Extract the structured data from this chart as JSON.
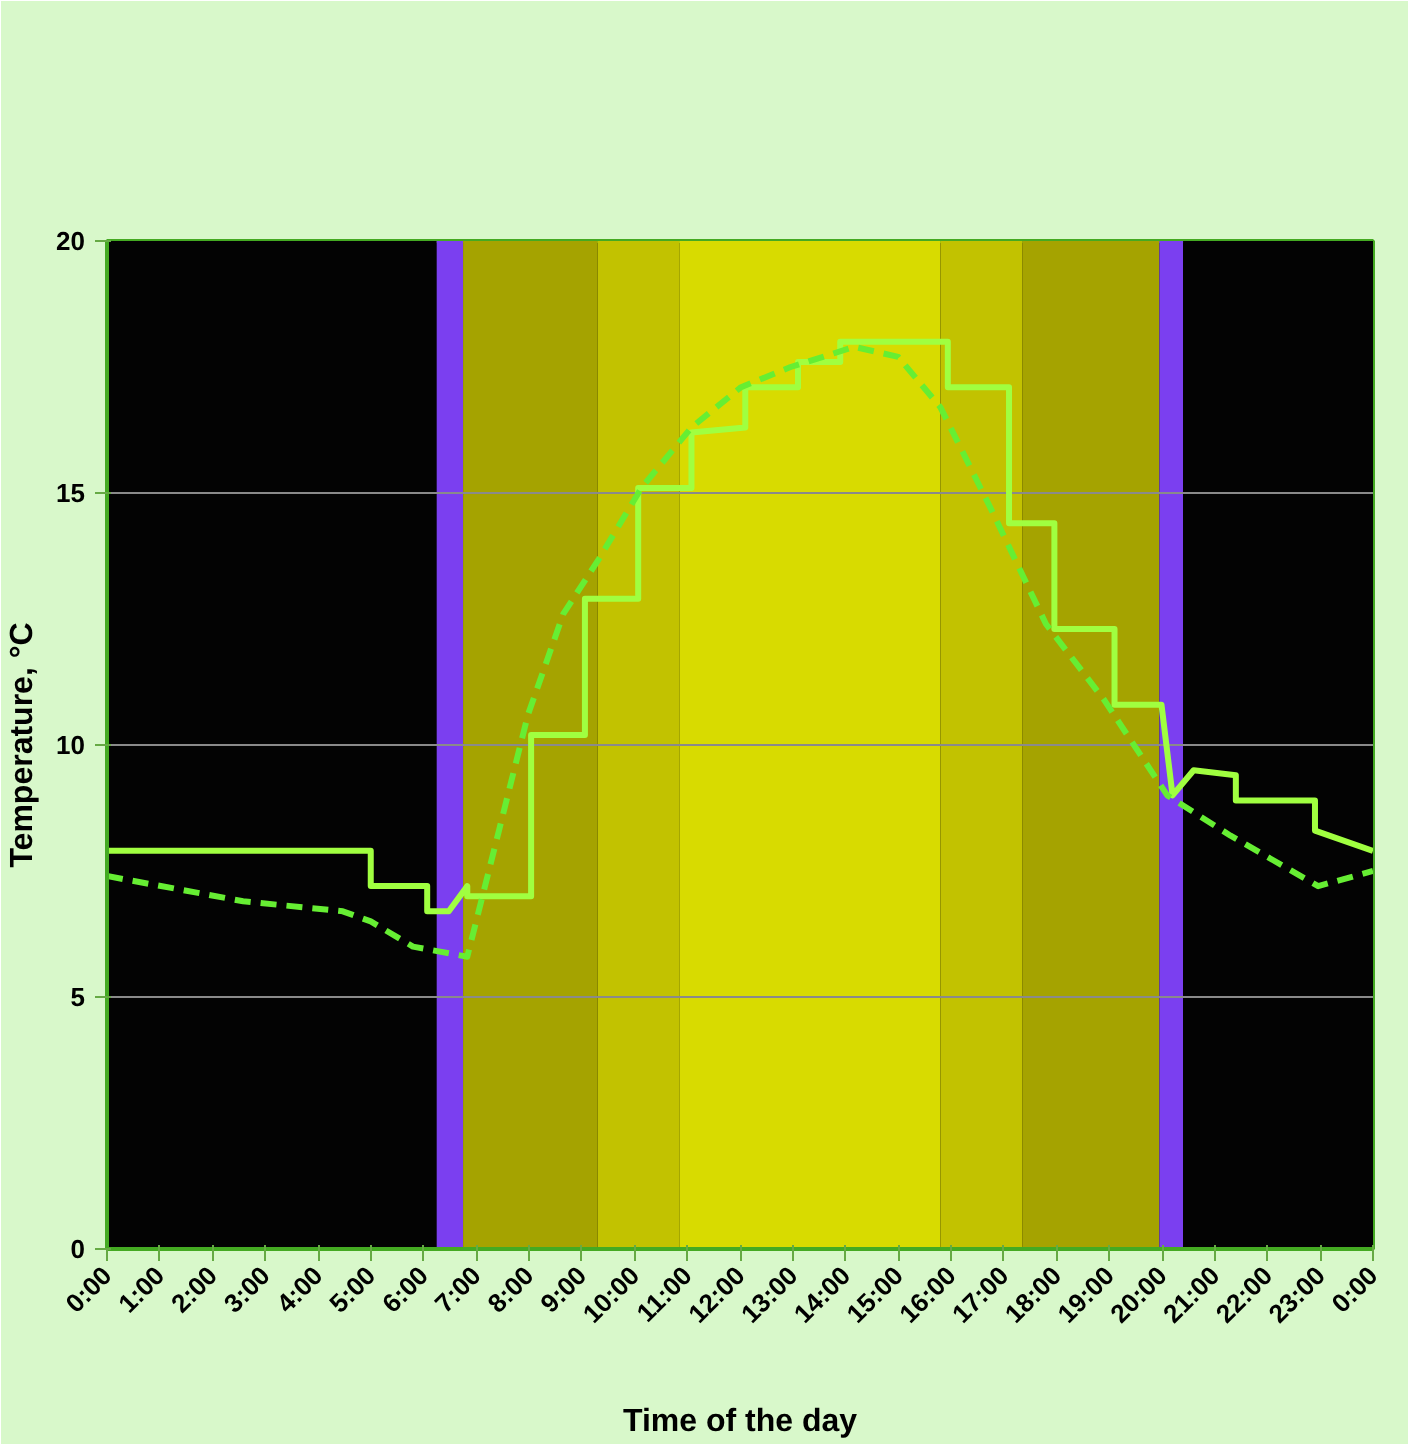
{
  "chart_data": {
    "type": "line",
    "xlabel": "Time of the day",
    "ylabel": "Temperature, °C",
    "xlim": [
      0,
      24
    ],
    "ylim": [
      0,
      20
    ],
    "xticks": [
      {
        "value": 0,
        "label": "0:00"
      },
      {
        "value": 1,
        "label": "1:00"
      },
      {
        "value": 2,
        "label": "2:00"
      },
      {
        "value": 3,
        "label": "3:00"
      },
      {
        "value": 4,
        "label": "4:00"
      },
      {
        "value": 5,
        "label": "5:00"
      },
      {
        "value": 6,
        "label": "6:00"
      },
      {
        "value": 7,
        "label": "7:00"
      },
      {
        "value": 8,
        "label": "8:00"
      },
      {
        "value": 9,
        "label": "9:00"
      },
      {
        "value": 10,
        "label": "10:00"
      },
      {
        "value": 11,
        "label": "11:00"
      },
      {
        "value": 12,
        "label": "12:00"
      },
      {
        "value": 13,
        "label": "13:00"
      },
      {
        "value": 14,
        "label": "14:00"
      },
      {
        "value": 15,
        "label": "15:00"
      },
      {
        "value": 16,
        "label": "16:00"
      },
      {
        "value": 17,
        "label": "17:00"
      },
      {
        "value": 18,
        "label": "18:00"
      },
      {
        "value": 19,
        "label": "19:00"
      },
      {
        "value": 20,
        "label": "20:00"
      },
      {
        "value": 21,
        "label": "21:00"
      },
      {
        "value": 22,
        "label": "22:00"
      },
      {
        "value": 23,
        "label": "23:00"
      },
      {
        "value": 24,
        "label": "0:00"
      }
    ],
    "yticks": [
      0,
      5,
      10,
      15,
      20
    ],
    "grid": "y",
    "marker": "none",
    "bands": [
      {
        "axis": "x",
        "from": 0,
        "to": 6.25,
        "color": "#030303"
      },
      {
        "axis": "x",
        "from": 6.25,
        "to": 6.75,
        "color": "#7b3ff0"
      },
      {
        "axis": "x",
        "from": 6.75,
        "to": 9.3,
        "color": "#a5a300"
      },
      {
        "axis": "x",
        "from": 9.3,
        "to": 10.85,
        "color": "#c2c200"
      },
      {
        "axis": "x",
        "from": 10.85,
        "to": 15.8,
        "color": "#d8db00"
      },
      {
        "axis": "x",
        "from": 15.8,
        "to": 17.35,
        "color": "#c2c200"
      },
      {
        "axis": "x",
        "from": 17.35,
        "to": 19.95,
        "color": "#a5a300"
      },
      {
        "axis": "x",
        "from": 19.95,
        "to": 20.4,
        "color": "#7b3ff0"
      },
      {
        "axis": "x",
        "from": 20.4,
        "to": 24,
        "color": "#030303"
      }
    ],
    "series": [
      {
        "color": "#a0ff40",
        "line_style": "solid",
        "x": [
          0,
          5.0,
          5.0,
          6.07,
          6.07,
          6.48,
          6.83,
          6.83,
          8.04,
          8.04,
          9.06,
          9.06,
          10.07,
          10.07,
          11.08,
          11.08,
          12.1,
          12.1,
          13.1,
          13.1,
          13.9,
          13.9,
          15.94,
          15.94,
          17.1,
          17.1,
          17.96,
          17.96,
          19.1,
          19.1,
          19.99,
          20.2,
          20.6,
          21.4,
          21.4,
          22.9,
          22.9,
          24
        ],
        "values": [
          7.9,
          7.9,
          7.2,
          7.2,
          6.7,
          6.7,
          7.2,
          7.0,
          7.0,
          10.2,
          10.2,
          12.9,
          12.9,
          15.1,
          15.1,
          16.2,
          16.3,
          17.1,
          17.1,
          17.6,
          17.6,
          18.0,
          18.0,
          17.1,
          17.1,
          14.4,
          14.4,
          12.3,
          12.3,
          10.8,
          10.8,
          9.0,
          9.5,
          9.4,
          8.9,
          8.9,
          8.3,
          7.9
        ]
      },
      {
        "color": "#66ee33",
        "line_style": "dashed",
        "x": [
          0,
          2.58,
          4.47,
          5.0,
          5.8,
          6.83,
          7.43,
          7.98,
          8.65,
          9.33,
          10.13,
          11.08,
          12.02,
          12.96,
          14.17,
          15.0,
          15.8,
          16.75,
          17.8,
          18.9,
          20.1,
          21.3,
          22.96,
          24
        ],
        "values": [
          7.4,
          6.9,
          6.7,
          6.5,
          6.0,
          5.8,
          8.3,
          10.6,
          12.6,
          13.7,
          15.1,
          16.3,
          17.1,
          17.5,
          17.9,
          17.7,
          16.7,
          14.7,
          12.4,
          10.9,
          9.0,
          8.2,
          7.2,
          7.5
        ]
      }
    ]
  }
}
